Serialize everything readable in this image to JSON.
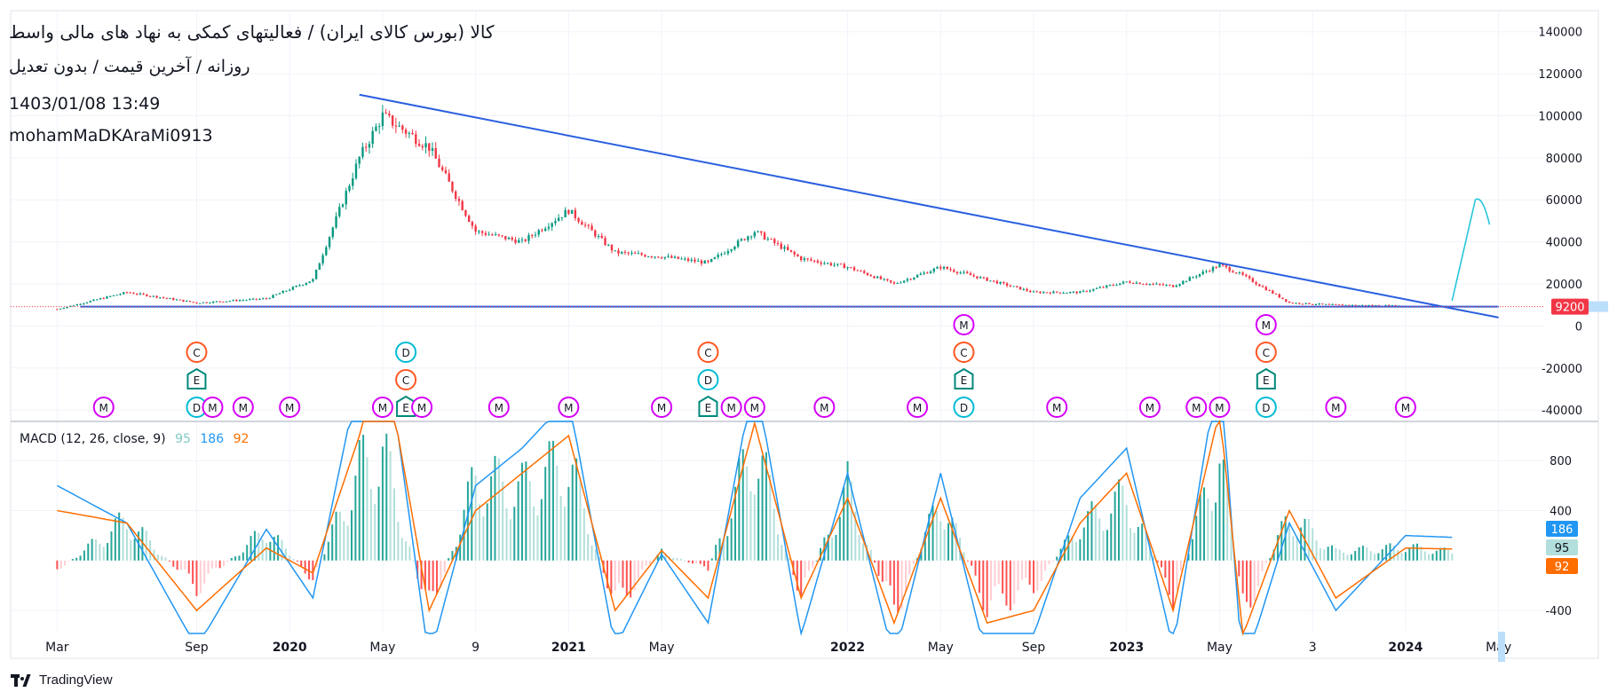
{
  "header": {
    "title": "کالا (بورس کالای ایران) / فعالیتهای کمکی به نهاد های مالی واسط",
    "subtitle": "روزانه / آخرین قیمت / بدون تعدیل",
    "datetime": "1403/01/08 13:49",
    "username": "mohamMaDKAraMi0913"
  },
  "brand": {
    "name": "TradingView"
  },
  "colors": {
    "trendline": "#2a5fe0",
    "up": "#089981",
    "down": "#f23645",
    "macd_line": "#2196f3",
    "signal_line": "#ff6d00",
    "hist_up_strong": "#26a69a",
    "hist_up_weak": "#b2dfdb",
    "hist_down_strong": "#ff5252",
    "hist_down_weak": "#ffcdd2",
    "price_label": "#f23645",
    "event_m": "#d500f9",
    "event_c": "#ff5722",
    "event_d": "#00bcd4",
    "event_e": "#00897b"
  },
  "macd_legend": {
    "label": "MACD (12, 26, close, 9)",
    "hist": "95",
    "macd": "186",
    "signal": "92"
  },
  "chart_data": [
    {
      "type": "candlestick",
      "yaxis_ticks": [
        "140000",
        "120000",
        "100000",
        "80000",
        "60000",
        "40000",
        "20000",
        "0",
        "-20000",
        "-40000"
      ],
      "ylim": [
        -45000,
        150000
      ],
      "last_price_label": "9200",
      "x_ticks": [
        "Mar",
        "Sep",
        "2020",
        "May",
        "9",
        "2021",
        "May",
        "2022",
        "May",
        "Sep",
        "2023",
        "May",
        "3",
        "2024",
        "May"
      ],
      "x": [
        "2019-03",
        "2019-06",
        "2019-09",
        "2019-12",
        "2020-02",
        "2020-04",
        "2020-05",
        "2020-07",
        "2020-09",
        "2020-11",
        "2021-01",
        "2021-03",
        "2021-05",
        "2021-07",
        "2021-09",
        "2021-11",
        "2022-01",
        "2022-03",
        "2022-05",
        "2022-07",
        "2022-09",
        "2022-11",
        "2023-01",
        "2023-03",
        "2023-05",
        "2023-06",
        "2023-08",
        "2023-10",
        "2024-01",
        "2024-03"
      ],
      "close": [
        8000,
        16000,
        11000,
        13000,
        22000,
        80000,
        100000,
        85000,
        45000,
        40000,
        55000,
        35000,
        33000,
        30000,
        45000,
        32000,
        28000,
        20000,
        28000,
        22000,
        16000,
        16000,
        21000,
        19000,
        29000,
        24000,
        11000,
        10000,
        9500,
        9200
      ],
      "trendlines": [
        {
          "name": "resistance",
          "from": [
            "2020-04",
            110000
          ],
          "to": [
            "2024-05",
            4000
          ]
        },
        {
          "name": "support",
          "from": [
            "2019-04",
            9200
          ],
          "to": [
            "2024-05",
            9200
          ]
        }
      ],
      "projection_arrow": {
        "from": [
          "2024-03",
          12000
        ],
        "to": [
          "2024-04",
          60000
        ]
      },
      "events": [
        {
          "x": "2019-05",
          "letters": [
            "M"
          ]
        },
        {
          "x": "2019-09",
          "letters": [
            "C",
            "E",
            "D"
          ]
        },
        {
          "x": "2019-09",
          "letters": [
            "M"
          ]
        },
        {
          "x": "2019-11",
          "letters": [
            "M"
          ]
        },
        {
          "x": "2020-01",
          "letters": [
            "M"
          ]
        },
        {
          "x": "2020-05",
          "letters": [
            "M"
          ]
        },
        {
          "x": "2020-06",
          "letters": [
            "D",
            "C",
            "E"
          ]
        },
        {
          "x": "2020-06",
          "letters": [
            "M"
          ]
        },
        {
          "x": "2020-10",
          "letters": [
            "M"
          ]
        },
        {
          "x": "2021-01",
          "letters": [
            "M"
          ]
        },
        {
          "x": "2021-05",
          "letters": [
            "M"
          ]
        },
        {
          "x": "2021-07",
          "letters": [
            "C",
            "D",
            "E"
          ]
        },
        {
          "x": "2021-08",
          "letters": [
            "M"
          ]
        },
        {
          "x": "2021-09",
          "letters": [
            "M"
          ]
        },
        {
          "x": "2021-12",
          "letters": [
            "M"
          ]
        },
        {
          "x": "2022-04",
          "letters": [
            "M"
          ]
        },
        {
          "x": "2022-06",
          "letters": [
            "M",
            "C",
            "E",
            "D"
          ]
        },
        {
          "x": "2022-10",
          "letters": [
            "M"
          ]
        },
        {
          "x": "2023-02",
          "letters": [
            "M"
          ]
        },
        {
          "x": "2023-04",
          "letters": [
            "M"
          ]
        },
        {
          "x": "2023-05",
          "letters": [
            "M"
          ]
        },
        {
          "x": "2023-07",
          "letters": [
            "M",
            "C",
            "E",
            "D"
          ]
        },
        {
          "x": "2023-10",
          "letters": [
            "M"
          ]
        },
        {
          "x": "2024-01",
          "letters": [
            "M"
          ]
        }
      ]
    },
    {
      "type": "bar",
      "name_label": "MACD (12, 26, close, 9)",
      "yaxis_ticks": [
        "800",
        "400",
        "-400"
      ],
      "ylim": [
        -570,
        1100
      ],
      "value_labels": {
        "macd": "186",
        "hist": "95",
        "signal": "92"
      },
      "x": [
        "2019-03",
        "2019-06",
        "2019-09",
        "2019-12",
        "2020-02",
        "2020-04",
        "2020-05",
        "2020-07",
        "2020-09",
        "2020-11",
        "2021-01",
        "2021-03",
        "2021-05",
        "2021-07",
        "2021-09",
        "2021-11",
        "2022-01",
        "2022-03",
        "2022-05",
        "2022-07",
        "2022-09",
        "2022-11",
        "2023-01",
        "2023-03",
        "2023-05",
        "2023-06",
        "2023-08",
        "2023-10",
        "2024-01",
        "2024-03"
      ],
      "histogram": [
        -100,
        450,
        -300,
        350,
        -200,
        1000,
        1200,
        -600,
        900,
        800,
        1100,
        -500,
        100,
        -100,
        1300,
        -400,
        800,
        -600,
        700,
        -500,
        -300,
        400,
        700,
        -400,
        1200,
        -600,
        500,
        100,
        150,
        95
      ],
      "macd": [
        600,
        300,
        -700,
        250,
        -300,
        1500,
        1900,
        -800,
        600,
        900,
        1300,
        -700,
        50,
        -500,
        1500,
        -600,
        700,
        -800,
        700,
        -800,
        -600,
        500,
        900,
        -700,
        1600,
        -900,
        300,
        -400,
        200,
        186
      ],
      "signal": [
        400,
        300,
        -400,
        100,
        -100,
        1000,
        1700,
        -400,
        400,
        700,
        1000,
        -400,
        80,
        -300,
        1100,
        -300,
        500,
        -500,
        500,
        -500,
        -400,
        300,
        700,
        -400,
        1200,
        -600,
        400,
        -300,
        100,
        92
      ]
    }
  ]
}
